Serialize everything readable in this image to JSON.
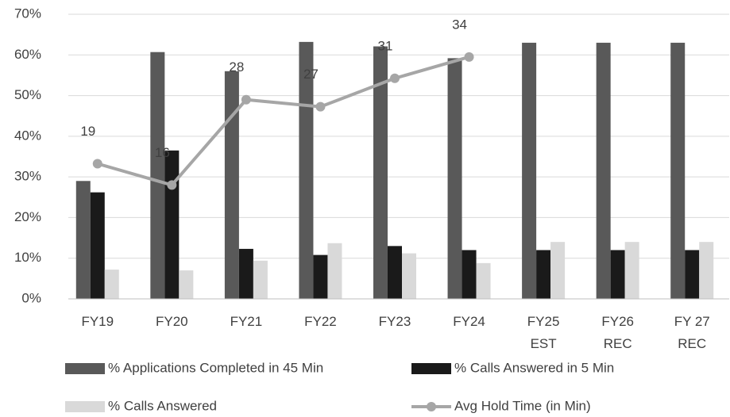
{
  "chart_data": {
    "type": "bar_line",
    "categories": [
      "FY19",
      "FY20",
      "FY21",
      "FY22",
      "FY23",
      "FY24",
      "FY25\nEST",
      "FY26\nREC",
      "FY 27\nREC"
    ],
    "series": [
      {
        "name": "% Applications Completed in 45 Min",
        "color": "#595959",
        "type": "bar",
        "values": [
          29,
          60.7,
          56,
          63.2,
          62.1,
          59.2,
          63,
          63,
          63
        ]
      },
      {
        "name": "% Calls Answered in 5 Min",
        "color": "#1a1a1a",
        "type": "bar",
        "values": [
          26.2,
          36.5,
          12.3,
          10.8,
          13,
          12,
          12,
          12,
          12
        ]
      },
      {
        "name": "% Calls Answered",
        "color": "#d9d9d9",
        "type": "bar",
        "values": [
          7.2,
          7,
          9.4,
          13.7,
          11.2,
          8.8,
          14,
          14,
          14
        ]
      },
      {
        "name": "Avg Hold Time (in Min)",
        "color": "#a6a6a6",
        "type": "line",
        "axis": "y2",
        "values": [
          19,
          16,
          28,
          27,
          31,
          34,
          null,
          null,
          null
        ]
      }
    ],
    "ylim": [
      0,
      70
    ],
    "yticks": [
      {
        "value": 0,
        "label": "0%"
      },
      {
        "value": 10,
        "label": "10%"
      },
      {
        "value": 20,
        "label": "20%"
      },
      {
        "value": 30,
        "label": "30%"
      },
      {
        "value": 40,
        "label": "40%"
      },
      {
        "value": 50,
        "label": "50%"
      },
      {
        "value": 60,
        "label": "60%"
      },
      {
        "value": 70,
        "label": "70%"
      }
    ],
    "y2lim": [
      0,
      40
    ],
    "grid": true,
    "legend": "bottom"
  }
}
